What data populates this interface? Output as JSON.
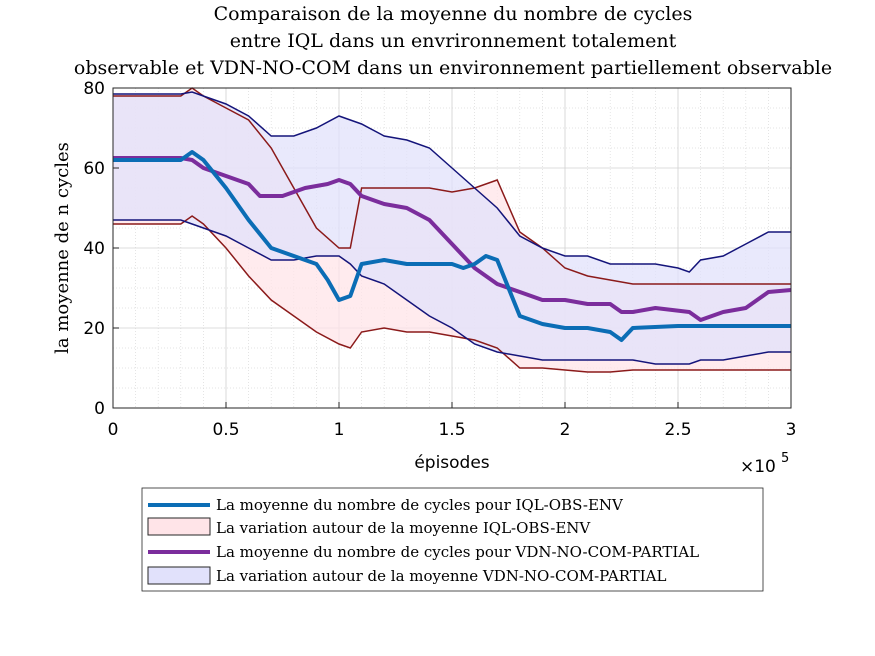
{
  "chart_data": {
    "type": "area",
    "title_lines": [
      "Comparaison de la moyenne du nombre de cycles",
      "entre IQL dans un envrironnement totalement",
      "observable et VDN-NO-COM dans un environnement partiellement observable"
    ],
    "xlabel": "épisodes",
    "ylabel": "la moyenne de n cycles",
    "x_exponent_base": "×10",
    "x_exponent_power": "5",
    "xlim": [
      0,
      3
    ],
    "ylim": [
      0,
      80
    ],
    "xticks": [
      "0",
      "0.5",
      "1",
      "1.5",
      "2",
      "2.5",
      "3"
    ],
    "yticks": [
      "0",
      "20",
      "40",
      "60",
      "80"
    ],
    "grid": true,
    "legend_position": "bottom-center",
    "colors": {
      "iql_mean": "#0b6db5",
      "iql_band_fill": "#ffe4e8",
      "iql_band_edge": "#8b1a1a",
      "vdn_mean": "#7b2d9c",
      "vdn_band_fill": "#e1e1fb",
      "vdn_band_edge": "#14147a"
    },
    "legend": [
      "La moyenne du nombre de cycles pour IQL-OBS-ENV",
      "La variation autour de la moyenne IQL-OBS-ENV",
      "La moyenne du nombre de cycles pour VDN-NO-COM-PARTIAL",
      "La variation autour de la moyenne VDN-NO-COM-PARTIAL"
    ],
    "series": [
      {
        "x": [
          0,
          0.3,
          0.35,
          0.4,
          0.5,
          0.6,
          0.7,
          0.8,
          0.9,
          0.95,
          1.0,
          1.05,
          1.1,
          1.2,
          1.3,
          1.4,
          1.5,
          1.55,
          1.6,
          1.65,
          1.7,
          1.75,
          1.8,
          1.9,
          2.0,
          2.1,
          2.2,
          2.25,
          2.3,
          2.5,
          2.7,
          3.0
        ],
        "y": [
          62,
          62,
          64,
          62,
          55,
          47,
          40,
          38,
          36,
          32,
          27,
          28,
          36,
          37,
          36,
          36,
          36,
          35,
          36,
          38,
          37,
          30,
          23,
          21,
          20,
          20,
          19,
          17,
          20,
          20.5,
          20.5,
          20.5
        ]
      },
      {
        "x": [
          0,
          0.3,
          0.35,
          0.4,
          0.5,
          0.6,
          0.65,
          0.75,
          0.85,
          0.95,
          1.0,
          1.05,
          1.1,
          1.2,
          1.3,
          1.4,
          1.5,
          1.55,
          1.6,
          1.7,
          1.8,
          1.9,
          2.0,
          2.1,
          2.2,
          2.25,
          2.3,
          2.4,
          2.55,
          2.6,
          2.7,
          2.8,
          2.9,
          3.0
        ],
        "y": [
          62.5,
          62.5,
          62,
          60,
          58,
          56,
          53,
          53,
          55,
          56,
          57,
          56,
          53,
          51,
          50,
          47,
          41,
          38,
          35,
          31,
          29,
          27,
          27,
          26,
          26,
          24,
          24,
          25,
          24,
          22,
          24,
          25,
          29,
          29.5
        ]
      },
      {
        "x": [
          0,
          0.3,
          0.35,
          0.4,
          0.5,
          0.6,
          0.7,
          0.8,
          0.9,
          1.0,
          1.05,
          1.1,
          1.2,
          1.3,
          1.4,
          1.5,
          1.6,
          1.7,
          1.8,
          1.9,
          2.0,
          2.1,
          2.2,
          2.3,
          3.0
        ],
        "y_upper": [
          78,
          78,
          80,
          78,
          75,
          72,
          65,
          55,
          45,
          40,
          40,
          55,
          55,
          55,
          55,
          54,
          55,
          57,
          44,
          40,
          35,
          33,
          32,
          31,
          31
        ],
        "y_lower": [
          46,
          46,
          48,
          46,
          40,
          33,
          27,
          23,
          19,
          16,
          15,
          19,
          20,
          19,
          19,
          18,
          17,
          15,
          10,
          10,
          9.5,
          9,
          9,
          9.5,
          9.5
        ]
      },
      {
        "x": [
          0,
          0.3,
          0.35,
          0.45,
          0.5,
          0.6,
          0.7,
          0.8,
          0.9,
          1.0,
          1.05,
          1.1,
          1.2,
          1.3,
          1.4,
          1.5,
          1.6,
          1.7,
          1.8,
          1.9,
          2.0,
          2.1,
          2.2,
          2.3,
          2.4,
          2.5,
          2.55,
          2.6,
          2.7,
          2.8,
          2.9,
          3.0
        ],
        "y_upper": [
          78.5,
          78.5,
          79,
          77,
          76,
          73,
          68,
          68,
          70,
          73,
          72,
          71,
          68,
          67,
          65,
          60,
          55,
          50,
          43,
          40,
          38,
          38,
          36,
          36,
          36,
          35,
          34,
          37,
          38,
          41,
          44,
          44
        ],
        "y_lower": [
          47,
          47,
          46,
          44,
          43,
          40,
          37,
          37,
          38,
          38,
          36,
          33,
          31,
          27,
          23,
          20,
          16,
          14,
          13,
          12,
          12,
          12,
          12,
          12,
          11,
          11,
          11,
          12,
          12,
          13,
          14,
          14
        ]
      }
    ]
  }
}
